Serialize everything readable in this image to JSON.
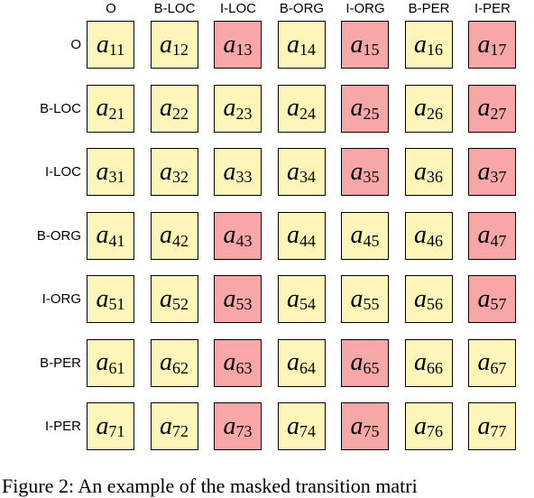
{
  "matrix": {
    "columns": [
      "O",
      "B-LOC",
      "I-LOC",
      "B-ORG",
      "I-ORG",
      "B-PER",
      "I-PER"
    ],
    "rows": [
      "O",
      "B-LOC",
      "I-LOC",
      "B-ORG",
      "I-ORG",
      "B-PER",
      "I-PER"
    ],
    "cells": [
      [
        {
          "var": "a",
          "index": "11",
          "masked": false
        },
        {
          "var": "a",
          "index": "12",
          "masked": false
        },
        {
          "var": "a",
          "index": "13",
          "masked": true
        },
        {
          "var": "a",
          "index": "14",
          "masked": false
        },
        {
          "var": "a",
          "index": "15",
          "masked": true
        },
        {
          "var": "a",
          "index": "16",
          "masked": false
        },
        {
          "var": "a",
          "index": "17",
          "masked": true
        }
      ],
      [
        {
          "var": "a",
          "index": "21",
          "masked": false
        },
        {
          "var": "a",
          "index": "22",
          "masked": false
        },
        {
          "var": "a",
          "index": "23",
          "masked": false
        },
        {
          "var": "a",
          "index": "24",
          "masked": false
        },
        {
          "var": "a",
          "index": "25",
          "masked": true
        },
        {
          "var": "a",
          "index": "26",
          "masked": false
        },
        {
          "var": "a",
          "index": "27",
          "masked": true
        }
      ],
      [
        {
          "var": "a",
          "index": "31",
          "masked": false
        },
        {
          "var": "a",
          "index": "32",
          "masked": false
        },
        {
          "var": "a",
          "index": "33",
          "masked": false
        },
        {
          "var": "a",
          "index": "34",
          "masked": false
        },
        {
          "var": "a",
          "index": "35",
          "masked": true
        },
        {
          "var": "a",
          "index": "36",
          "masked": false
        },
        {
          "var": "a",
          "index": "37",
          "masked": true
        }
      ],
      [
        {
          "var": "a",
          "index": "41",
          "masked": false
        },
        {
          "var": "a",
          "index": "42",
          "masked": false
        },
        {
          "var": "a",
          "index": "43",
          "masked": true
        },
        {
          "var": "a",
          "index": "44",
          "masked": false
        },
        {
          "var": "a",
          "index": "45",
          "masked": false
        },
        {
          "var": "a",
          "index": "46",
          "masked": false
        },
        {
          "var": "a",
          "index": "47",
          "masked": true
        }
      ],
      [
        {
          "var": "a",
          "index": "51",
          "masked": false
        },
        {
          "var": "a",
          "index": "52",
          "masked": false
        },
        {
          "var": "a",
          "index": "53",
          "masked": true
        },
        {
          "var": "a",
          "index": "54",
          "masked": false
        },
        {
          "var": "a",
          "index": "55",
          "masked": false
        },
        {
          "var": "a",
          "index": "56",
          "masked": false
        },
        {
          "var": "a",
          "index": "57",
          "masked": true
        }
      ],
      [
        {
          "var": "a",
          "index": "61",
          "masked": false
        },
        {
          "var": "a",
          "index": "62",
          "masked": false
        },
        {
          "var": "a",
          "index": "63",
          "masked": true
        },
        {
          "var": "a",
          "index": "64",
          "masked": false
        },
        {
          "var": "a",
          "index": "65",
          "masked": true
        },
        {
          "var": "a",
          "index": "66",
          "masked": false
        },
        {
          "var": "a",
          "index": "67",
          "masked": false
        }
      ],
      [
        {
          "var": "a",
          "index": "71",
          "masked": false
        },
        {
          "var": "a",
          "index": "72",
          "masked": false
        },
        {
          "var": "a",
          "index": "73",
          "masked": true
        },
        {
          "var": "a",
          "index": "74",
          "masked": false
        },
        {
          "var": "a",
          "index": "75",
          "masked": true
        },
        {
          "var": "a",
          "index": "76",
          "masked": false
        },
        {
          "var": "a",
          "index": "77",
          "masked": false
        }
      ]
    ]
  },
  "caption": "Figure 2: An example of the masked transition matri"
}
